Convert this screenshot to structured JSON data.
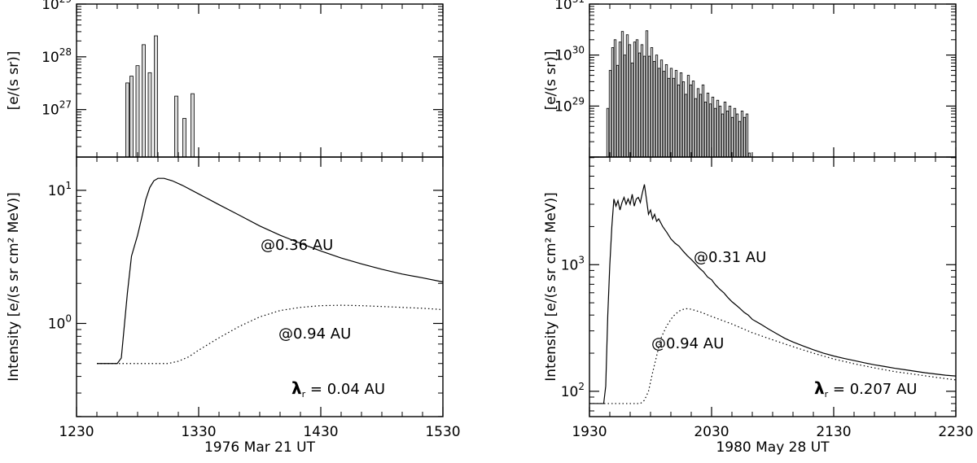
{
  "chart_data": [
    {
      "panel": "left",
      "xlabel": "1976 Mar 21 UT",
      "x_ticks": [
        "1230",
        "1330",
        "1430",
        "1530"
      ],
      "x_range_minutes": [
        0,
        180
      ],
      "top": {
        "type": "bar",
        "ylabel": "[e/(s sr)]",
        "y_log_range": [
          26.1,
          29.0
        ],
        "y_ticks": [
          {
            "base": "10",
            "exp": "27"
          },
          {
            "base": "10",
            "exp": "28"
          },
          {
            "base": "10",
            "exp": "29"
          }
        ],
        "bar_width_minutes": 1.6,
        "bars": [
          {
            "t": 25,
            "v": 3.2e+27
          },
          {
            "t": 27,
            "v": 4.3e+27
          },
          {
            "t": 30,
            "v": 6.8e+27
          },
          {
            "t": 33,
            "v": 1.7e+28
          },
          {
            "t": 36,
            "v": 5e+27
          },
          {
            "t": 39,
            "v": 2.5e+28
          },
          {
            "t": 49,
            "v": 1.8e+27
          },
          {
            "t": 53,
            "v": 6.8e+26
          },
          {
            "t": 57,
            "v": 2e+27
          }
        ]
      },
      "bottom": {
        "type": "line",
        "ylabel": "Intensity [e/(s sr cm² MeV)]",
        "y_log_range": [
          -0.7,
          1.25
        ],
        "y_ticks": [
          {
            "base": "10",
            "exp": "0"
          },
          {
            "base": "10",
            "exp": "1"
          }
        ],
        "series": [
          {
            "name": "@0.36 AU",
            "style": "solid",
            "points": [
              [
                10,
                0.5
              ],
              [
                20,
                0.5
              ],
              [
                22,
                0.55
              ],
              [
                23,
                0.8
              ],
              [
                25,
                1.7
              ],
              [
                27,
                3.2
              ],
              [
                30,
                4.6
              ],
              [
                32,
                6.2
              ],
              [
                34,
                8.5
              ],
              [
                36,
                10.5
              ],
              [
                38,
                11.8
              ],
              [
                40,
                12.3
              ],
              [
                43,
                12.3
              ],
              [
                47,
                11.8
              ],
              [
                52,
                10.9
              ],
              [
                60,
                9.4
              ],
              [
                70,
                7.8
              ],
              [
                80,
                6.5
              ],
              [
                90,
                5.4
              ],
              [
                100,
                4.6
              ],
              [
                110,
                4.0
              ],
              [
                120,
                3.5
              ],
              [
                130,
                3.1
              ],
              [
                140,
                2.8
              ],
              [
                150,
                2.55
              ],
              [
                160,
                2.35
              ],
              [
                170,
                2.2
              ],
              [
                180,
                2.05
              ]
            ]
          },
          {
            "name": "@0.94 AU",
            "style": "dotted",
            "points": [
              [
                10,
                0.5
              ],
              [
                45,
                0.5
              ],
              [
                50,
                0.52
              ],
              [
                55,
                0.56
              ],
              [
                60,
                0.63
              ],
              [
                70,
                0.78
              ],
              [
                80,
                0.95
              ],
              [
                90,
                1.12
              ],
              [
                100,
                1.25
              ],
              [
                110,
                1.32
              ],
              [
                120,
                1.36
              ],
              [
                130,
                1.37
              ],
              [
                140,
                1.36
              ],
              [
                150,
                1.34
              ],
              [
                160,
                1.32
              ],
              [
                170,
                1.3
              ],
              [
                180,
                1.27
              ]
            ]
          }
        ],
        "annotations": {
          "label_a": "@0.36 AU",
          "label_b": "@0.94 AU",
          "lambda_symbol": "λ",
          "lambda_sub": "r",
          "lambda_value": " = 0.04 AU"
        }
      }
    },
    {
      "panel": "right",
      "xlabel": "1980 May 28 UT",
      "x_ticks": [
        "1930",
        "2030",
        "2130",
        "2230"
      ],
      "x_range_minutes": [
        0,
        180
      ],
      "top": {
        "type": "bar",
        "ylabel": "[e/(s sr)]",
        "y_log_range": [
          28.0,
          31.0
        ],
        "y_ticks": [
          {
            "base": "10",
            "exp": "29"
          },
          {
            "base": "10",
            "exp": "30"
          },
          {
            "base": "10",
            "exp": "31"
          }
        ],
        "bar_width_minutes": 1.0,
        "bars": [
          {
            "t": 9,
            "v": 9e+28
          },
          {
            "t": 10.2,
            "v": 5e+29
          },
          {
            "t": 11.4,
            "v": 1.4e+30
          },
          {
            "t": 12.6,
            "v": 2e+30
          },
          {
            "t": 13.8,
            "v": 6.3e+29
          },
          {
            "t": 15,
            "v": 1.8e+30
          },
          {
            "t": 16.2,
            "v": 2.9e+30
          },
          {
            "t": 17.4,
            "v": 1e+30
          },
          {
            "t": 18.6,
            "v": 2.5e+30
          },
          {
            "t": 19.8,
            "v": 1.6e+30
          },
          {
            "t": 21,
            "v": 7e+29
          },
          {
            "t": 22.2,
            "v": 1.8e+30
          },
          {
            "t": 23.4,
            "v": 2e+30
          },
          {
            "t": 24.6,
            "v": 1.1e+30
          },
          {
            "t": 25.8,
            "v": 1.6e+30
          },
          {
            "t": 27,
            "v": 9.5e+29
          },
          {
            "t": 28.2,
            "v": 3e+30
          },
          {
            "t": 29.4,
            "v": 9.5e+29
          },
          {
            "t": 30.6,
            "v": 1.4e+30
          },
          {
            "t": 31.8,
            "v": 7.5e+29
          },
          {
            "t": 33,
            "v": 1e+30
          },
          {
            "t": 34.2,
            "v": 5.5e+29
          },
          {
            "t": 35.4,
            "v": 8e+29
          },
          {
            "t": 36.6,
            "v": 4.8e+29
          },
          {
            "t": 37.8,
            "v": 6.5e+29
          },
          {
            "t": 39,
            "v": 3.5e+29
          },
          {
            "t": 40.2,
            "v": 5.5e+29
          },
          {
            "t": 41.4,
            "v": 3.5e+29
          },
          {
            "t": 42.6,
            "v": 5e+29
          },
          {
            "t": 43.8,
            "v": 2.6e+29
          },
          {
            "t": 45,
            "v": 4.5e+29
          },
          {
            "t": 46.2,
            "v": 3e+29
          },
          {
            "t": 47.4,
            "v": 1.7e+29
          },
          {
            "t": 48.6,
            "v": 4e+29
          },
          {
            "t": 49.8,
            "v": 2.6e+29
          },
          {
            "t": 51,
            "v": 3.1e+29
          },
          {
            "t": 52.2,
            "v": 1.4e+29
          },
          {
            "t": 53.4,
            "v": 2.2e+29
          },
          {
            "t": 54.6,
            "v": 1.7e+29
          },
          {
            "t": 55.8,
            "v": 2.6e+29
          },
          {
            "t": 57,
            "v": 1.2e+29
          },
          {
            "t": 58.2,
            "v": 1.8e+29
          },
          {
            "t": 59.4,
            "v": 1.1e+29
          },
          {
            "t": 60.6,
            "v": 1.5e+29
          },
          {
            "t": 61.8,
            "v": 9e+28
          },
          {
            "t": 63,
            "v": 1.3e+29
          },
          {
            "t": 64.2,
            "v": 1e+29
          },
          {
            "t": 65.4,
            "v": 7e+28
          },
          {
            "t": 66.6,
            "v": 1.2e+29
          },
          {
            "t": 67.8,
            "v": 8e+28
          },
          {
            "t": 69,
            "v": 1e+29
          },
          {
            "t": 70.2,
            "v": 6e+28
          },
          {
            "t": 71.4,
            "v": 9e+28
          },
          {
            "t": 72.6,
            "v": 7e+28
          },
          {
            "t": 73.8,
            "v": 5e+28
          },
          {
            "t": 75,
            "v": 8e+28
          },
          {
            "t": 76.2,
            "v": 6e+28
          },
          {
            "t": 77.4,
            "v": 7e+28
          },
          {
            "t": 78.6,
            "v": 1.2e+28
          }
        ]
      },
      "bottom": {
        "type": "line",
        "ylabel": "Intensity [e/(s sr cm² MeV)]",
        "y_log_range": [
          1.8,
          3.85
        ],
        "y_ticks": [
          {
            "base": "10",
            "exp": "2"
          },
          {
            "base": "10",
            "exp": "3"
          }
        ],
        "series": [
          {
            "name": "@0.31 AU",
            "style": "solid",
            "points": [
              [
                0,
                80
              ],
              [
                7,
                80
              ],
              [
                8,
                110
              ],
              [
                9,
                400
              ],
              [
                10,
                1000
              ],
              [
                11,
                2000
              ],
              [
                12,
                3300
              ],
              [
                13,
                2900
              ],
              [
                14,
                3200
              ],
              [
                15,
                2700
              ],
              [
                16,
                3100
              ],
              [
                17,
                3400
              ],
              [
                18,
                3000
              ],
              [
                19,
                3300
              ],
              [
                20,
                3000
              ],
              [
                21,
                3600
              ],
              [
                22,
                2900
              ],
              [
                23,
                3300
              ],
              [
                24,
                3400
              ],
              [
                25,
                3100
              ],
              [
                26,
                3700
              ],
              [
                27,
                4300
              ],
              [
                28,
                3300
              ],
              [
                29,
                2500
              ],
              [
                30,
                2700
              ],
              [
                31,
                2300
              ],
              [
                32,
                2500
              ],
              [
                33,
                2200
              ],
              [
                34,
                2300
              ],
              [
                36,
                2000
              ],
              [
                38,
                1800
              ],
              [
                40,
                1600
              ],
              [
                42,
                1480
              ],
              [
                44,
                1400
              ],
              [
                46,
                1280
              ],
              [
                48,
                1180
              ],
              [
                50,
                1100
              ],
              [
                52,
                1020
              ],
              [
                54,
                940
              ],
              [
                56,
                880
              ],
              [
                58,
                800
              ],
              [
                60,
                760
              ],
              [
                62,
                690
              ],
              [
                64,
                640
              ],
              [
                66,
                600
              ],
              [
                68,
                550
              ],
              [
                70,
                510
              ],
              [
                72,
                480
              ],
              [
                74,
                450
              ],
              [
                76,
                420
              ],
              [
                78,
                400
              ],
              [
                80,
                370
              ],
              [
                84,
                340
              ],
              [
                88,
                310
              ],
              [
                92,
                285
              ],
              [
                96,
                262
              ],
              [
                100,
                245
              ],
              [
                105,
                228
              ],
              [
                110,
                213
              ],
              [
                115,
                200
              ],
              [
                120,
                190
              ],
              [
                125,
                182
              ],
              [
                130,
                175
              ],
              [
                135,
                168
              ],
              [
                140,
                162
              ],
              [
                145,
                157
              ],
              [
                150,
                152
              ],
              [
                155,
                148
              ],
              [
                160,
                144
              ],
              [
                165,
                140
              ],
              [
                170,
                137
              ],
              [
                175,
                134
              ],
              [
                180,
                132
              ]
            ]
          },
          {
            "name": "@0.94 AU",
            "style": "dotted",
            "points": [
              [
                0,
                80
              ],
              [
                25,
                80
              ],
              [
                27,
                85
              ],
              [
                29,
                100
              ],
              [
                31,
                140
              ],
              [
                33,
                190
              ],
              [
                35,
                260
              ],
              [
                38,
                330
              ],
              [
                41,
                390
              ],
              [
                44,
                430
              ],
              [
                47,
                450
              ],
              [
                50,
                445
              ],
              [
                55,
                420
              ],
              [
                60,
                390
              ],
              [
                70,
                340
              ],
              [
                80,
                290
              ],
              [
                90,
                255
              ],
              [
                100,
                225
              ],
              [
                110,
                200
              ],
              [
                120,
                180
              ],
              [
                130,
                165
              ],
              [
                140,
                153
              ],
              [
                150,
                143
              ],
              [
                160,
                136
              ],
              [
                170,
                129
              ],
              [
                180,
                123
              ]
            ]
          }
        ],
        "annotations": {
          "label_a": "@0.31 AU",
          "label_b": "@0.94 AU",
          "lambda_symbol": "λ",
          "lambda_sub": "r",
          "lambda_value": " = 0.207 AU"
        }
      }
    }
  ]
}
